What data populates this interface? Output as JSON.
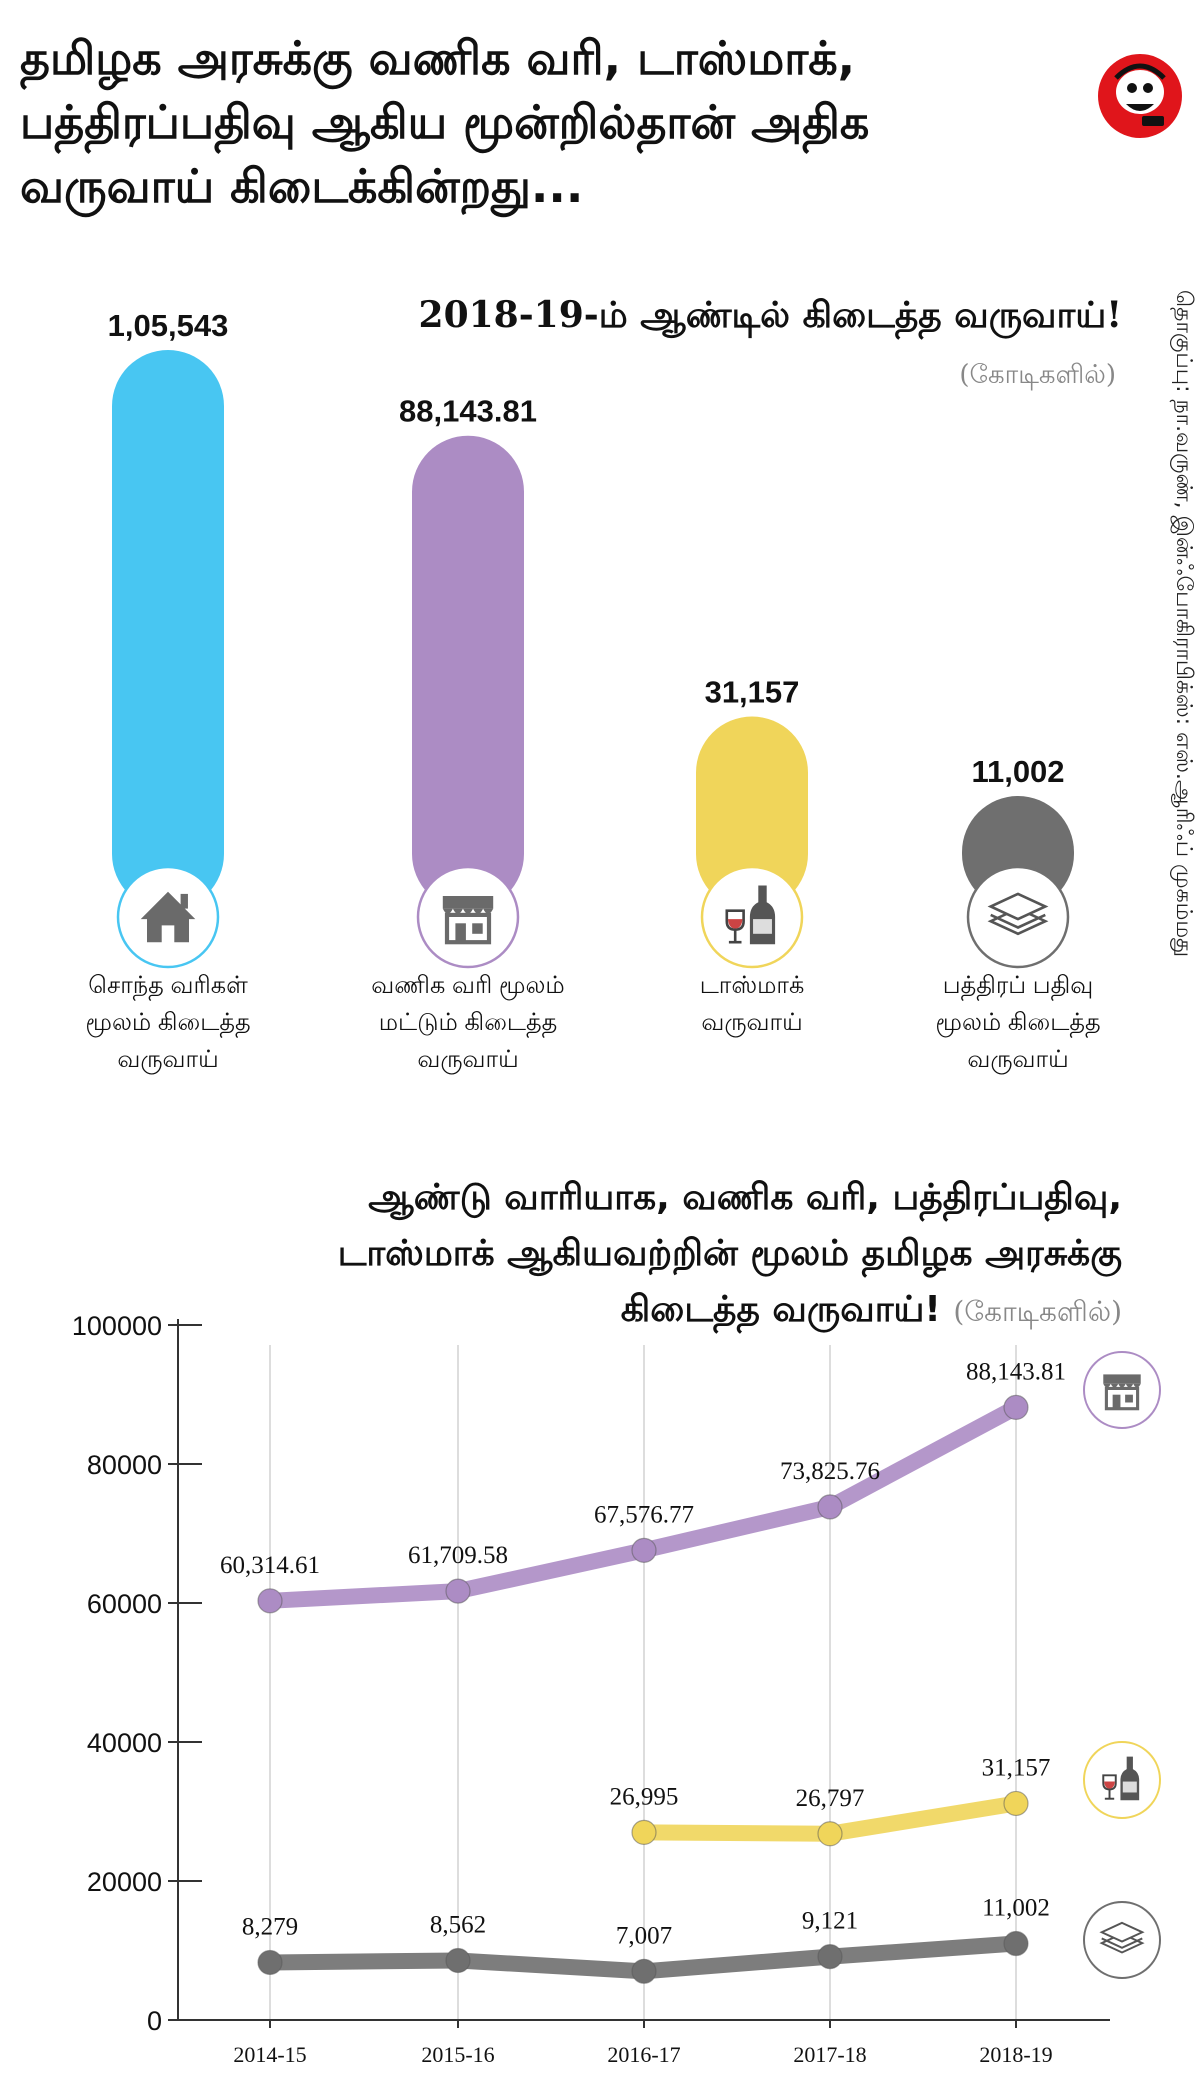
{
  "headline": [
    "தமிழக அரசுக்கு வணிக வரி, டாஸ்மாக்,",
    "பத்திரப்பதிவு ஆகிய மூன்றில்தான் அதிக",
    "வருவாய் கிடைக்கின்றது..."
  ],
  "credit": "தொகுப்பு: நா.வருண், இன்ஃபோகிராபிக்ஸ்: எஸ்.ஆரிஃப் முகம்மது",
  "colors": {
    "commercial_tax": "#ac8cc4",
    "tasmac": "#f0d55a",
    "registration": "#6f6f6f",
    "own_tax": "#48c6f2"
  },
  "chart_data": [
    {
      "type": "bar",
      "title": "2018-19-ம் ஆண்டில் கிடைத்த வருவாய்!",
      "unit": "(கோடிகளில்)",
      "categories": [
        "சொந்த வரிகள் மூலம் கிடைத்த வருவாய்",
        "வணிக வரி மூலம் மட்டும் கிடைத்த வருவாய்",
        "டாஸ்மாக் வருவாய்",
        "பத்திரப் பதிவு மூலம் கிடைத்த வருவாய்"
      ],
      "category_lines": [
        [
          "சொந்த வரிகள்",
          "மூலம் கிடைத்த",
          "வருவாய்"
        ],
        [
          "வணிக வரி மூலம்",
          "மட்டும் கிடைத்த",
          "வருவாய்"
        ],
        [
          "டாஸ்மாக்",
          "வருவாய்"
        ],
        [
          "பத்திரப் பதிவு",
          "மூலம் கிடைத்த",
          "வருவாய்"
        ]
      ],
      "values": [
        105543,
        88143.81,
        31157,
        11002
      ],
      "value_labels": [
        "1,05,543",
        "88,143.81",
        "31,157",
        "11,002"
      ],
      "colors": [
        "#48c6f2",
        "#ac8cc4",
        "#f0d55a",
        "#6f6f6f"
      ],
      "icons": [
        "house-icon",
        "shop-icon",
        "wine-icon",
        "document-stack-icon"
      ]
    },
    {
      "type": "line",
      "title_lines": [
        "ஆண்டு வாரியாக, வணிக வரி, பத்திரப்பதிவு,",
        "டாஸ்மாக் ஆகியவற்றின் மூலம் தமிழக அரசுக்கு",
        "கிடைத்த வருவாய்!"
      ],
      "unit": "(கோடிகளில்)",
      "x": [
        "2014-15",
        "2015-16",
        "2016-17",
        "2017-18",
        "2018-19"
      ],
      "ylim": [
        0,
        100000
      ],
      "yticks": [
        "0",
        "20000",
        "40000",
        "60000",
        "80000",
        "100000"
      ],
      "grid": "vertical",
      "series": [
        {
          "key": "commercial_tax",
          "values": [
            60314.61,
            61709.58,
            67576.77,
            73825.76,
            88143.81
          ],
          "labels": [
            "60,314.61",
            "61,709.58",
            "67,576.77",
            "73,825.76",
            "88,143.81"
          ],
          "color": "#ac8cc4",
          "icon": "shop-icon"
        },
        {
          "key": "tasmac",
          "values": [
            null,
            null,
            26995,
            26797,
            31157
          ],
          "labels": [
            "",
            "",
            "26,995",
            "26,797",
            "31,157"
          ],
          "color": "#f0d55a",
          "icon": "wine-icon"
        },
        {
          "key": "registration",
          "values": [
            8279,
            8562,
            7007,
            9121,
            11002
          ],
          "labels": [
            "8,279",
            "8,562",
            "7,007",
            "9,121",
            "11,002"
          ],
          "color": "#6f6f6f",
          "icon": "document-stack-icon"
        }
      ]
    }
  ]
}
